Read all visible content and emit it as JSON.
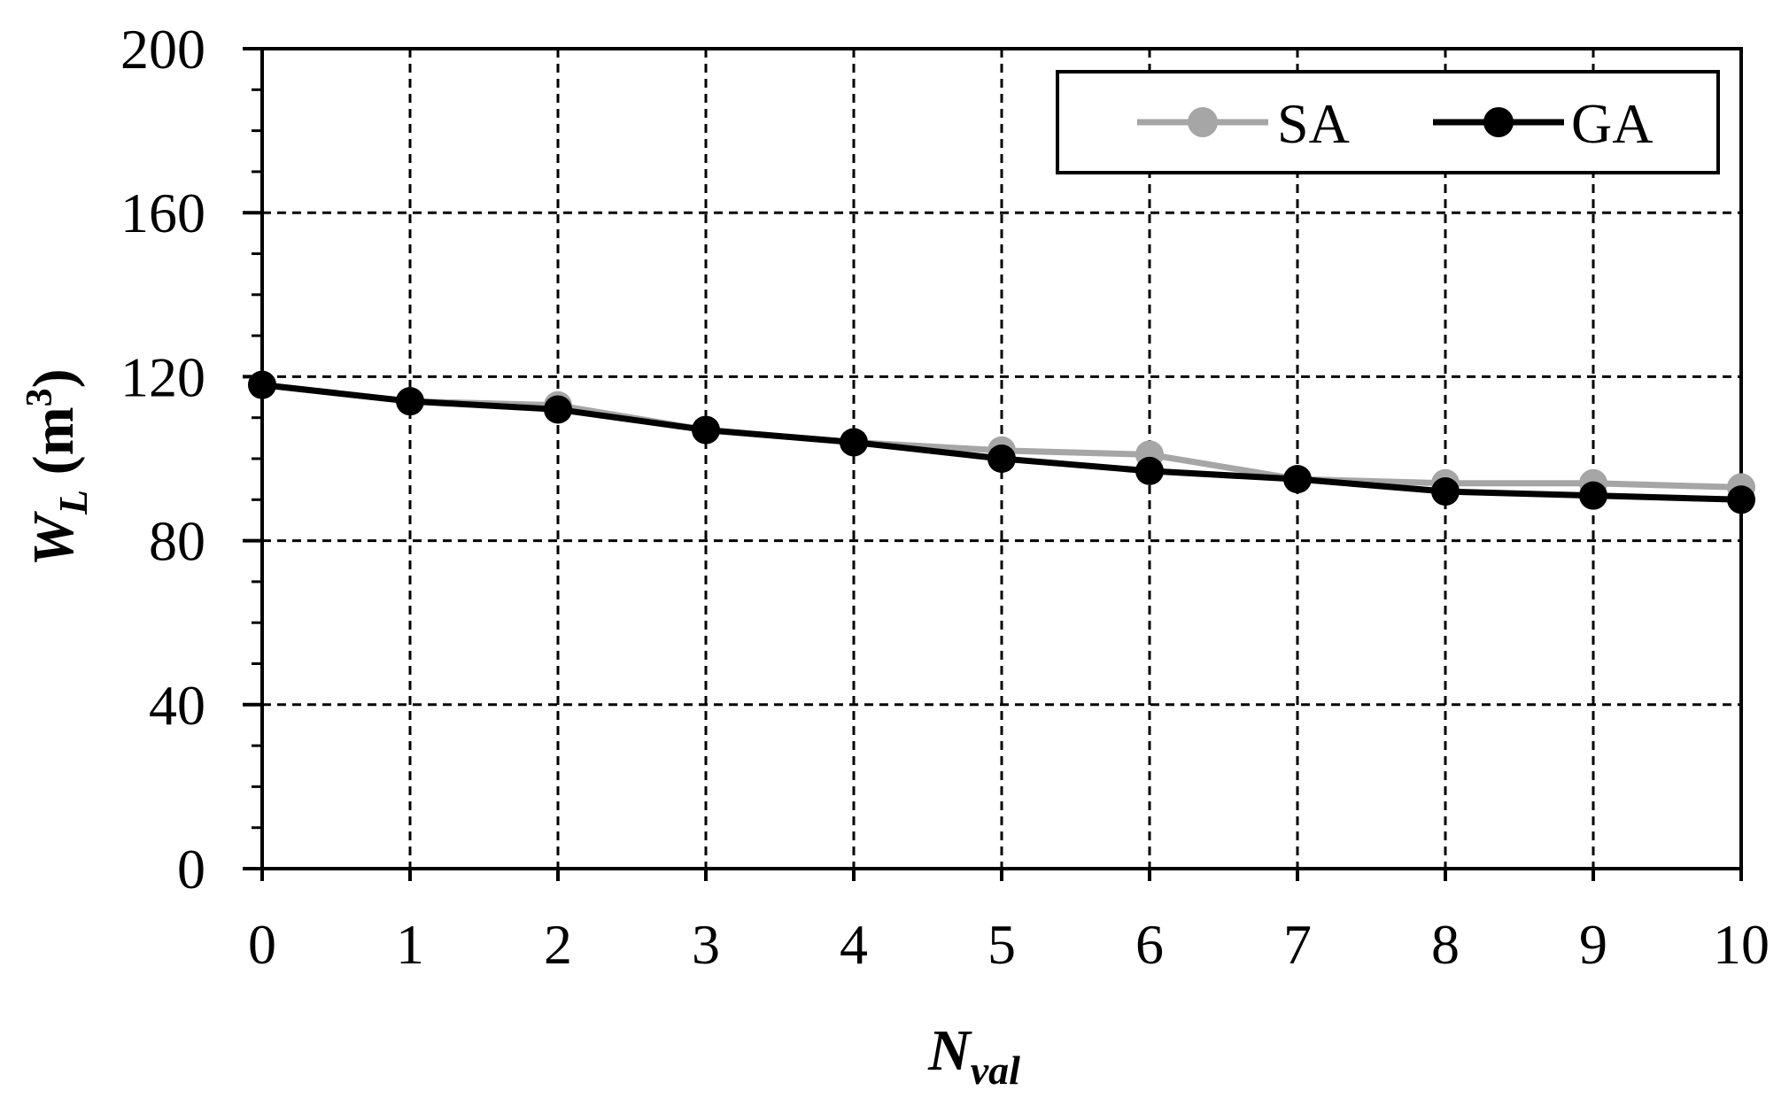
{
  "chart_data": {
    "type": "line",
    "x": [
      0,
      1,
      2,
      3,
      4,
      5,
      6,
      7,
      8,
      9,
      10
    ],
    "xlabel": {
      "main": "N",
      "sub": "val"
    },
    "ylabel": {
      "main": "W",
      "sub": "L",
      "unit_open": " (m",
      "sup": "3",
      "unit_close": ")"
    },
    "xlim": [
      0,
      10
    ],
    "ylim": [
      0,
      200
    ],
    "xticks": [
      "0",
      "1",
      "2",
      "3",
      "4",
      "5",
      "6",
      "7",
      "8",
      "9",
      "10"
    ],
    "yticks": [
      "0",
      "40",
      "80",
      "120",
      "160",
      "200"
    ],
    "grid": true,
    "grid_style": "dashed",
    "legend_position": "top-right",
    "series": [
      {
        "name": "SA",
        "color": "#a6a6a6",
        "values": [
          118,
          114,
          113,
          107,
          104,
          102,
          101,
          95,
          94,
          94,
          93
        ]
      },
      {
        "name": "GA",
        "color": "#000000",
        "values": [
          118,
          114,
          112,
          107,
          104,
          100,
          97,
          95,
          92,
          91,
          90
        ]
      }
    ]
  }
}
